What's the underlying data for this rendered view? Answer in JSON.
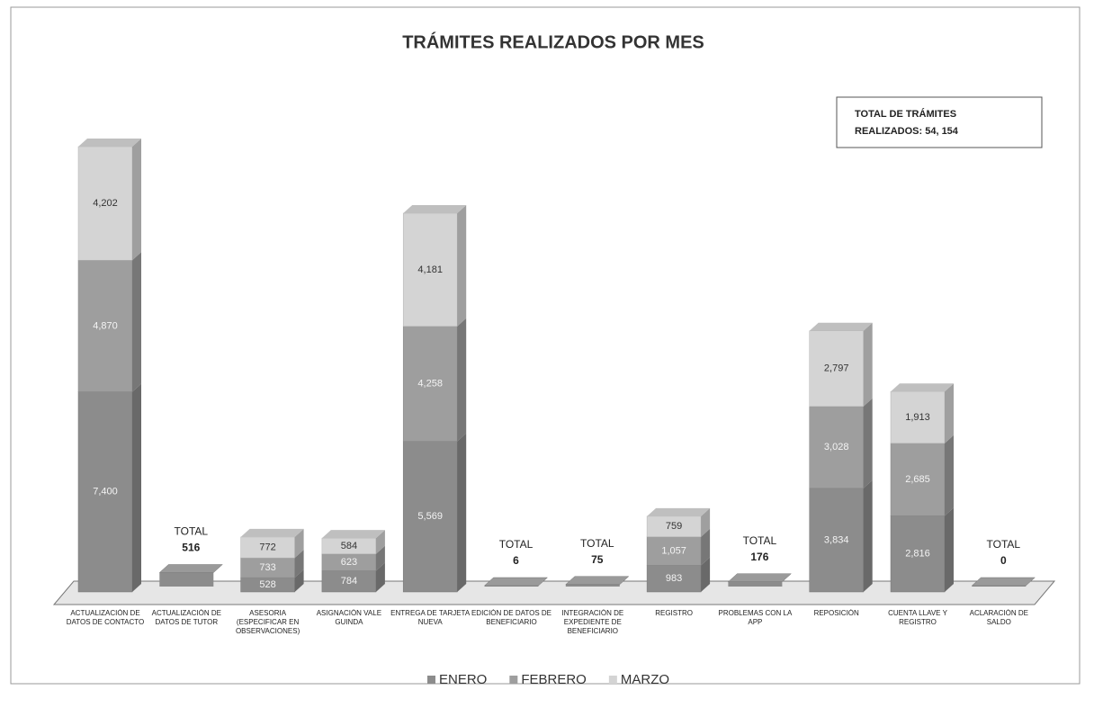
{
  "chart_data": {
    "type": "bar",
    "stacked": true,
    "title": "TRÁMITES REALIZADOS POR MES",
    "annotation": [
      "TOTAL DE TRÁMITES",
      "REALIZADOS: 54, 154"
    ],
    "categories": [
      "ACTUALIZACIÓN DE DATOS DE CONTACTO",
      "ACTUALIZACIÓN DE DATOS DE TUTOR",
      "ASESORIA (ESPECIFICAR EN OBSERVACIONES)",
      "ASIGNACIÓN VALE GUINDA",
      "ENTREGA DE TARJETA NUEVA",
      "EDICIÓN DE DATOS DE BENEFICIARIO",
      "INTEGRACIÓN DE EXPEDIENTE DE BENEFICIARIO",
      "REGISTRO",
      "PROBLEMAS CON LA APP",
      "REPOSICIÓN",
      "CUENTA LLAVE Y REGISTRO",
      "ACLARACIÓN DE SALDO"
    ],
    "series": [
      {
        "name": "ENERO",
        "color": "#8c8c8c",
        "values": [
          7400,
          null,
          528,
          784,
          5569,
          null,
          null,
          983,
          null,
          3834,
          2816,
          null
        ],
        "value_labels": [
          "7,400",
          null,
          "528",
          "784",
          "5,569",
          null,
          null,
          "983",
          null,
          "3,834",
          "2,816",
          null
        ]
      },
      {
        "name": "FEBRERO",
        "color": "#9e9e9e",
        "values": [
          4870,
          null,
          733,
          623,
          4258,
          null,
          null,
          1057,
          null,
          3028,
          2685,
          null
        ],
        "value_labels": [
          "4,870",
          null,
          "733",
          "623",
          "4,258",
          null,
          null,
          "1,057",
          null,
          "3,028",
          "2,685",
          null
        ]
      },
      {
        "name": "MARZO",
        "color": "#d4d4d4",
        "values": [
          4202,
          null,
          772,
          584,
          4181,
          null,
          null,
          759,
          null,
          2797,
          1913,
          null
        ],
        "value_labels": [
          "4,202",
          null,
          "772",
          "584",
          "4,181",
          null,
          null,
          "759",
          null,
          "2,797",
          "1,913",
          null
        ]
      }
    ],
    "totals": {
      "label": "TOTAL",
      "values": [
        null,
        516,
        null,
        null,
        null,
        6,
        75,
        null,
        176,
        null,
        null,
        0
      ]
    },
    "legend": "bottom"
  }
}
